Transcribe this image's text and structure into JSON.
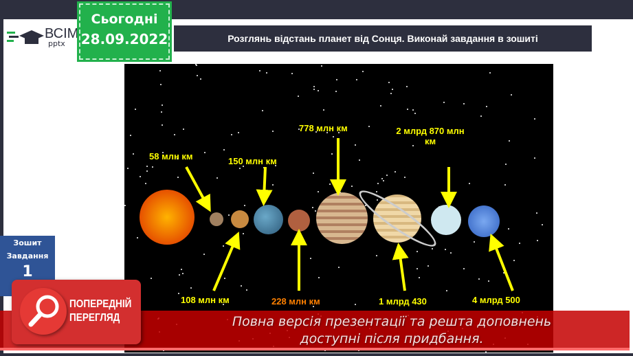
{
  "logo": {
    "name": "ВСІМ",
    "sub": "pptx"
  },
  "date_badge": {
    "label": "Сьогодні",
    "date": "28.09.2022"
  },
  "title": "Розглянь відстань планет від Сонця. Виконай завдання в зошиті",
  "side_card": {
    "line1": "Зошит",
    "line2": "Завдання",
    "number": "1"
  },
  "distances": [
    "58 млн км",
    "150 млн км",
    "778 млн км",
    "2 млрд 870 млн км",
    "108 млн км",
    "228 млн км",
    "1 млрд 430",
    "4 млрд 500"
  ],
  "preview": {
    "line1": "ПОПЕРЕДНІЙ",
    "line2": "ПЕРЕГЛЯД",
    "icon": "magnifier-icon"
  },
  "banner": {
    "line1": "Повна версія презентації та решта доповнень",
    "line2": "доступні після придбання."
  },
  "colors": {
    "accent_green": "#22b14c",
    "navy": "#2d2f3e",
    "label_yellow": "#ffff00",
    "banner_red": "#c40000"
  }
}
